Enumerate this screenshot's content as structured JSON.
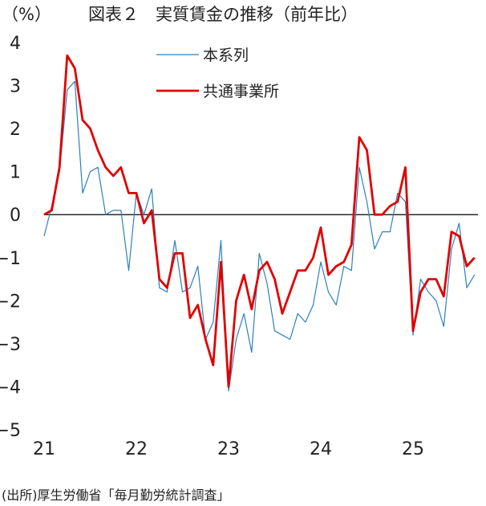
{
  "chart_data": {
    "type": "line",
    "title": "図表２　実質賃金の推移（前年比）",
    "unit_label": "（%）",
    "source": "(出所)厚生労働省「毎月勤労統計調査」",
    "ylim": [
      -5,
      4
    ],
    "yticks": [
      4,
      3,
      2,
      1,
      0,
      -1,
      -2,
      -3,
      -4,
      -5
    ],
    "ytick_labels": [
      "4",
      "3",
      "2",
      "1",
      "0",
      "−1",
      "−2",
      "−3",
      "−4",
      "−5"
    ],
    "x_range": [
      2021.0,
      2025.75
    ],
    "xticks": [
      2021,
      2022,
      2023,
      2024,
      2025
    ],
    "xtick_labels": [
      "21",
      "22",
      "23",
      "24",
      "25"
    ],
    "grid": false,
    "zero_line": true,
    "legend_position": "top-center",
    "series": [
      {
        "name": "本系列",
        "color": "#2e7fbf",
        "style": "thin",
        "points": [
          [
            2021.0,
            -0.5
          ],
          [
            2021.083,
            0.2
          ],
          [
            2021.167,
            1.0
          ],
          [
            2021.25,
            2.9
          ],
          [
            2021.333,
            3.1
          ],
          [
            2021.417,
            0.5
          ],
          [
            2021.5,
            1.0
          ],
          [
            2021.583,
            1.1
          ],
          [
            2021.667,
            0.0
          ],
          [
            2021.75,
            0.1
          ],
          [
            2021.833,
            0.1
          ],
          [
            2021.917,
            -1.3
          ],
          [
            2022.0,
            0.5
          ],
          [
            2022.083,
            0.0
          ],
          [
            2022.167,
            0.6
          ],
          [
            2022.25,
            -1.7
          ],
          [
            2022.333,
            -1.8
          ],
          [
            2022.417,
            -0.6
          ],
          [
            2022.5,
            -1.8
          ],
          [
            2022.583,
            -1.7
          ],
          [
            2022.667,
            -1.2
          ],
          [
            2022.75,
            -2.9
          ],
          [
            2022.833,
            -2.5
          ],
          [
            2022.917,
            -0.6
          ],
          [
            2023.0,
            -4.1
          ],
          [
            2023.083,
            -2.9
          ],
          [
            2023.167,
            -2.3
          ],
          [
            2023.25,
            -3.2
          ],
          [
            2023.333,
            -0.9
          ],
          [
            2023.417,
            -1.6
          ],
          [
            2023.5,
            -2.7
          ],
          [
            2023.583,
            -2.8
          ],
          [
            2023.667,
            -2.9
          ],
          [
            2023.75,
            -2.3
          ],
          [
            2023.833,
            -2.5
          ],
          [
            2023.917,
            -2.1
          ],
          [
            2024.0,
            -1.1
          ],
          [
            2024.083,
            -1.8
          ],
          [
            2024.167,
            -2.1
          ],
          [
            2024.25,
            -1.2
          ],
          [
            2024.333,
            -1.3
          ],
          [
            2024.417,
            1.1
          ],
          [
            2024.5,
            0.3
          ],
          [
            2024.583,
            -0.8
          ],
          [
            2024.667,
            -0.4
          ],
          [
            2024.75,
            -0.4
          ],
          [
            2024.833,
            0.5
          ],
          [
            2024.917,
            0.3
          ],
          [
            2025.0,
            -2.8
          ],
          [
            2025.083,
            -1.5
          ],
          [
            2025.167,
            -1.8
          ],
          [
            2025.25,
            -2.0
          ],
          [
            2025.333,
            -2.6
          ],
          [
            2025.417,
            -0.8
          ],
          [
            2025.5,
            -0.2
          ],
          [
            2025.583,
            -1.7
          ],
          [
            2025.667,
            -1.4
          ]
        ]
      },
      {
        "name": "共通事業所",
        "color": "#e00000",
        "style": "thick",
        "points": [
          [
            2021.0,
            0.0
          ],
          [
            2021.083,
            0.1
          ],
          [
            2021.167,
            1.1
          ],
          [
            2021.25,
            3.7
          ],
          [
            2021.333,
            3.4
          ],
          [
            2021.417,
            2.2
          ],
          [
            2021.5,
            2.0
          ],
          [
            2021.583,
            1.5
          ],
          [
            2021.667,
            1.1
          ],
          [
            2021.75,
            0.9
          ],
          [
            2021.833,
            1.1
          ],
          [
            2021.917,
            0.5
          ],
          [
            2022.0,
            0.5
          ],
          [
            2022.083,
            -0.2
          ],
          [
            2022.167,
            0.1
          ],
          [
            2022.25,
            -1.5
          ],
          [
            2022.333,
            -1.7
          ],
          [
            2022.417,
            -0.9
          ],
          [
            2022.5,
            -0.9
          ],
          [
            2022.583,
            -2.4
          ],
          [
            2022.667,
            -2.1
          ],
          [
            2022.75,
            -2.9
          ],
          [
            2022.833,
            -3.5
          ],
          [
            2022.917,
            -1.1
          ],
          [
            2023.0,
            -4.0
          ],
          [
            2023.083,
            -2.0
          ],
          [
            2023.167,
            -1.4
          ],
          [
            2023.25,
            -2.2
          ],
          [
            2023.333,
            -1.3
          ],
          [
            2023.417,
            -1.1
          ],
          [
            2023.5,
            -1.5
          ],
          [
            2023.583,
            -2.3
          ],
          [
            2023.667,
            -1.8
          ],
          [
            2023.75,
            -1.3
          ],
          [
            2023.833,
            -1.3
          ],
          [
            2023.917,
            -1.0
          ],
          [
            2024.0,
            -0.3
          ],
          [
            2024.083,
            -1.4
          ],
          [
            2024.167,
            -1.2
          ],
          [
            2024.25,
            -1.1
          ],
          [
            2024.333,
            -0.7
          ],
          [
            2024.417,
            1.8
          ],
          [
            2024.5,
            1.5
          ],
          [
            2024.583,
            0.0
          ],
          [
            2024.667,
            0.0
          ],
          [
            2024.75,
            0.2
          ],
          [
            2024.833,
            0.3
          ],
          [
            2024.917,
            1.1
          ],
          [
            2025.0,
            -2.7
          ],
          [
            2025.083,
            -1.8
          ],
          [
            2025.167,
            -1.5
          ],
          [
            2025.25,
            -1.5
          ],
          [
            2025.333,
            -1.9
          ],
          [
            2025.417,
            -0.4
          ],
          [
            2025.5,
            -0.5
          ],
          [
            2025.583,
            -1.2
          ],
          [
            2025.667,
            -1.0
          ]
        ]
      }
    ]
  }
}
